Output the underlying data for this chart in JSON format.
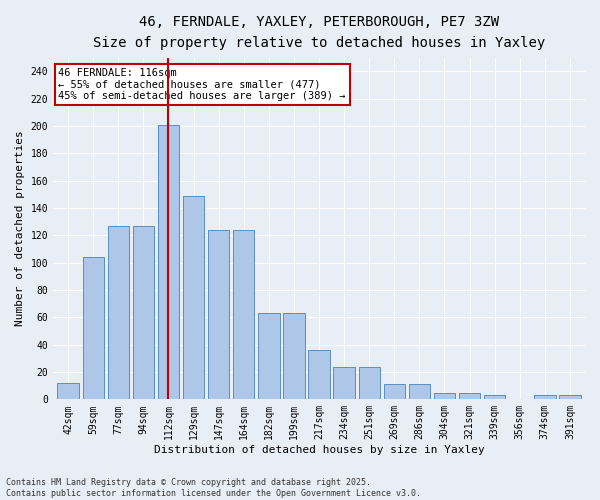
{
  "title_line1": "46, FERNDALE, YAXLEY, PETERBOROUGH, PE7 3ZW",
  "title_line2": "Size of property relative to detached houses in Yaxley",
  "xlabel": "Distribution of detached houses by size in Yaxley",
  "ylabel": "Number of detached properties",
  "categories": [
    "42sqm",
    "59sqm",
    "77sqm",
    "94sqm",
    "112sqm",
    "129sqm",
    "147sqm",
    "164sqm",
    "182sqm",
    "199sqm",
    "217sqm",
    "234sqm",
    "251sqm",
    "269sqm",
    "286sqm",
    "304sqm",
    "321sqm",
    "339sqm",
    "356sqm",
    "374sqm",
    "391sqm"
  ],
  "values": [
    12,
    104,
    127,
    127,
    201,
    149,
    124,
    124,
    63,
    63,
    36,
    24,
    24,
    11,
    11,
    5,
    5,
    3,
    0,
    3,
    3
  ],
  "bar_color": "#aec6e8",
  "bar_edge_color": "#5a8fc0",
  "highlight_index": 4,
  "highlight_color": "#c00000",
  "annotation_text": "46 FERNDALE: 116sqm\n← 55% of detached houses are smaller (477)\n45% of semi-detached houses are larger (389) →",
  "annotation_box_color": "#ffffff",
  "annotation_box_edge": "#c00000",
  "ylim": [
    0,
    250
  ],
  "yticks": [
    0,
    20,
    40,
    60,
    80,
    100,
    120,
    140,
    160,
    180,
    200,
    220,
    240
  ],
  "footer": "Contains HM Land Registry data © Crown copyright and database right 2025.\nContains public sector information licensed under the Open Government Licence v3.0.",
  "bg_color": "#e8eef5",
  "grid_color": "#ffffff",
  "title_fontsize": 10,
  "subtitle_fontsize": 9,
  "tick_fontsize": 7,
  "label_fontsize": 8,
  "footer_fontsize": 6,
  "annot_fontsize": 7.5
}
